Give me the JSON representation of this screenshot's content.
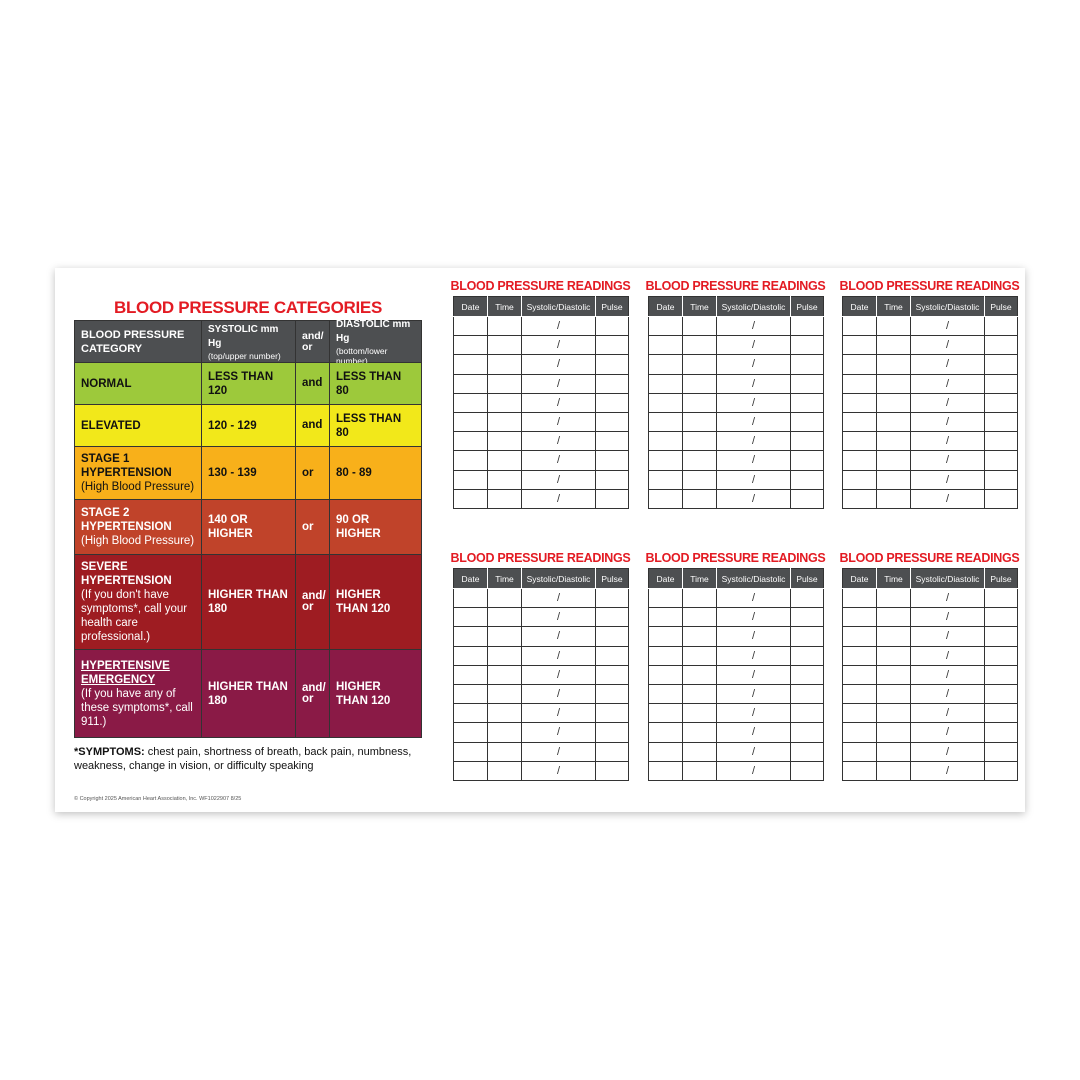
{
  "categories": {
    "title": "BLOOD PRESSURE CATEGORIES",
    "header": {
      "category": "BLOOD PRESSURE CATEGORY",
      "systolic": "SYSTOLIC mm Hg",
      "systolic_note": "(top/upper number)",
      "conjunction": "and/ or",
      "diastolic": "DIASTOLIC mm Hg",
      "diastolic_note": "(bottom/lower number)"
    },
    "rows": [
      {
        "name": "NORMAL",
        "systolic": "LESS THAN 120",
        "conjunction": "and",
        "diastolic": "LESS THAN 80"
      },
      {
        "name": "ELEVATED",
        "systolic": "120 - 129",
        "conjunction": "and",
        "diastolic": "LESS THAN 80"
      },
      {
        "name": "STAGE 1 HYPERTENSION",
        "note": "(High Blood Pressure)",
        "systolic": "130 - 139",
        "conjunction": "or",
        "diastolic": "80 - 89"
      },
      {
        "name": "STAGE 2 HYPERTENSION",
        "note": "(High Blood Pressure)",
        "systolic": "140 OR HIGHER",
        "conjunction": "or",
        "diastolic": "90 OR HIGHER"
      },
      {
        "name": "SEVERE HYPERTENSION",
        "note": "(If you don't have symptoms*, call your health care professional.)",
        "systolic": "HIGHER THAN 180",
        "conjunction": "and/ or",
        "diastolic": "HIGHER THAN 120"
      },
      {
        "name": "HYPERTENSIVE EMERGENCY",
        "note": "(If you have any of these symptoms*, call 911.)",
        "systolic": "HIGHER THAN 180",
        "conjunction": "and/ or",
        "diastolic": "HIGHER THAN 120"
      }
    ]
  },
  "symptoms": {
    "label": "*SYMPTOMS:",
    "text": "chest pain, shortness of breath, back pain, numbness, weakness, change in vision, or difficulty speaking"
  },
  "copyright": "© Copyright 2025 American Heart Association, Inc. WF1022907 8/25",
  "logs": [
    {
      "title": "BLOOD PRESSURE READINGS",
      "columns": [
        "Date",
        "Time",
        "Systolic/Diastolic",
        "Pulse"
      ],
      "slashes": [
        "/",
        "/",
        "/",
        "/",
        "/",
        "/",
        "/",
        "/",
        "/",
        "/"
      ]
    },
    {
      "title": "BLOOD PRESSURE READINGS",
      "columns": [
        "Date",
        "Time",
        "Systolic/Diastolic",
        "Pulse"
      ],
      "slashes": [
        "/",
        "/",
        "/",
        "/",
        "/",
        "/",
        "/",
        "/",
        "/",
        "/"
      ]
    },
    {
      "title": "BLOOD PRESSURE READINGS",
      "columns": [
        "Date",
        "Time",
        "Systolic/Diastolic",
        "Pulse"
      ],
      "slashes": [
        "/",
        "/",
        "/",
        "/",
        "/",
        "/",
        "/",
        "/",
        "/",
        "/"
      ]
    },
    {
      "title": "BLOOD PRESSURE READINGS",
      "columns": [
        "Date",
        "Time",
        "Systolic/Diastolic",
        "Pulse"
      ],
      "slashes": [
        "/",
        "/",
        "/",
        "/",
        "/",
        "/",
        "/",
        "/",
        "/",
        "/"
      ]
    },
    {
      "title": "BLOOD PRESSURE READINGS",
      "columns": [
        "Date",
        "Time",
        "Systolic/Diastolic",
        "Pulse"
      ],
      "slashes": [
        "/",
        "/",
        "/",
        "/",
        "/",
        "/",
        "/",
        "/",
        "/",
        "/"
      ]
    },
    {
      "title": "BLOOD PRESSURE READINGS",
      "columns": [
        "Date",
        "Time",
        "Systolic/Diastolic",
        "Pulse"
      ],
      "slashes": [
        "/",
        "/",
        "/",
        "/",
        "/",
        "/",
        "/",
        "/",
        "/",
        "/"
      ]
    }
  ]
}
